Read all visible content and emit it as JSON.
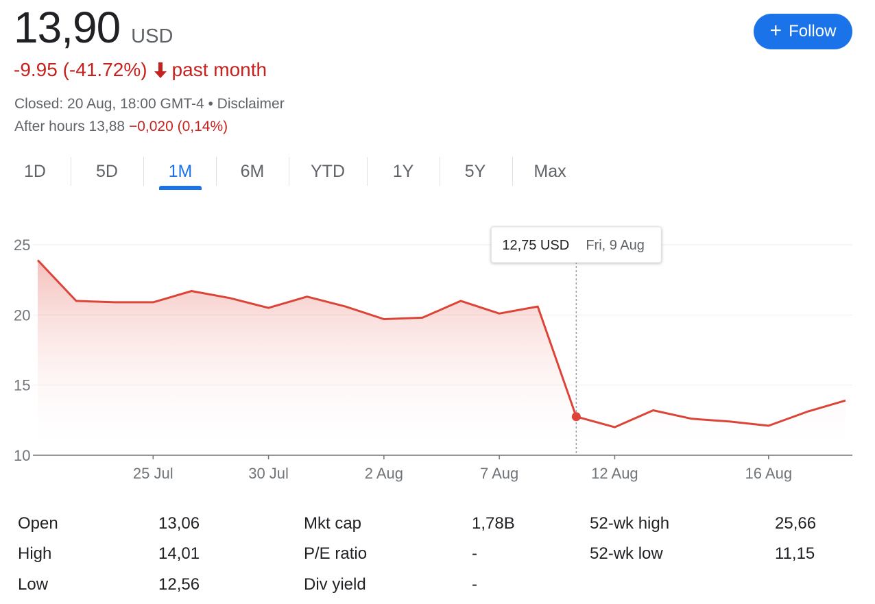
{
  "quote": {
    "price": "13,90",
    "currency": "USD",
    "change": "-9.95 (-41.72%)",
    "change_period": "past month",
    "closed": "Closed: 20 Aug, 18:00 GMT-4 • Disclaimer",
    "after_hours_label": "After hours 13,88",
    "after_hours_change": "−0,020 (0,14%)",
    "negative_color": "#c5221f"
  },
  "follow_button": {
    "label": "Follow",
    "icon": "plus-icon",
    "color": "#1a73e8"
  },
  "tabs": [
    "1D",
    "5D",
    "1M",
    "6M",
    "YTD",
    "1Y",
    "5Y",
    "Max"
  ],
  "active_tab": "1M",
  "tooltip": {
    "price": "12,75 USD",
    "date": "Fri, 9 Aug"
  },
  "chart_data": {
    "type": "area",
    "y_ticks": [
      "25",
      "20",
      "15",
      "10"
    ],
    "ylim": [
      10,
      25
    ],
    "x_tick_labels": [
      "25 Jul",
      "30 Jul",
      "2 Aug",
      "7 Aug",
      "12 Aug",
      "16 Aug"
    ],
    "line_color": "#db4437",
    "x": [
      "22 Jul",
      "23 Jul",
      "24 Jul",
      "25 Jul",
      "26 Jul",
      "29 Jul",
      "30 Jul",
      "31 Jul",
      "1 Aug",
      "2 Aug",
      "5 Aug",
      "6 Aug",
      "7 Aug",
      "8 Aug",
      "9 Aug",
      "12 Aug",
      "13 Aug",
      "14 Aug",
      "15 Aug",
      "16 Aug",
      "19 Aug",
      "20 Aug"
    ],
    "values": [
      23.9,
      21.0,
      20.9,
      20.9,
      21.7,
      21.2,
      20.5,
      21.3,
      20.6,
      19.7,
      19.8,
      21.0,
      20.1,
      20.6,
      12.75,
      12.0,
      13.2,
      12.6,
      12.4,
      12.1,
      13.1,
      13.9
    ],
    "highlight_index": 14
  },
  "stats": [
    {
      "label": "Open",
      "value": "13,06"
    },
    {
      "label": "High",
      "value": "14,01"
    },
    {
      "label": "Low",
      "value": "12,56"
    },
    {
      "label": "Mkt cap",
      "value": "1,78B"
    },
    {
      "label": "P/E ratio",
      "value": "-"
    },
    {
      "label": "Div yield",
      "value": "-"
    },
    {
      "label": "52-wk high",
      "value": "25,66"
    },
    {
      "label": "52-wk low",
      "value": "11,15"
    }
  ]
}
